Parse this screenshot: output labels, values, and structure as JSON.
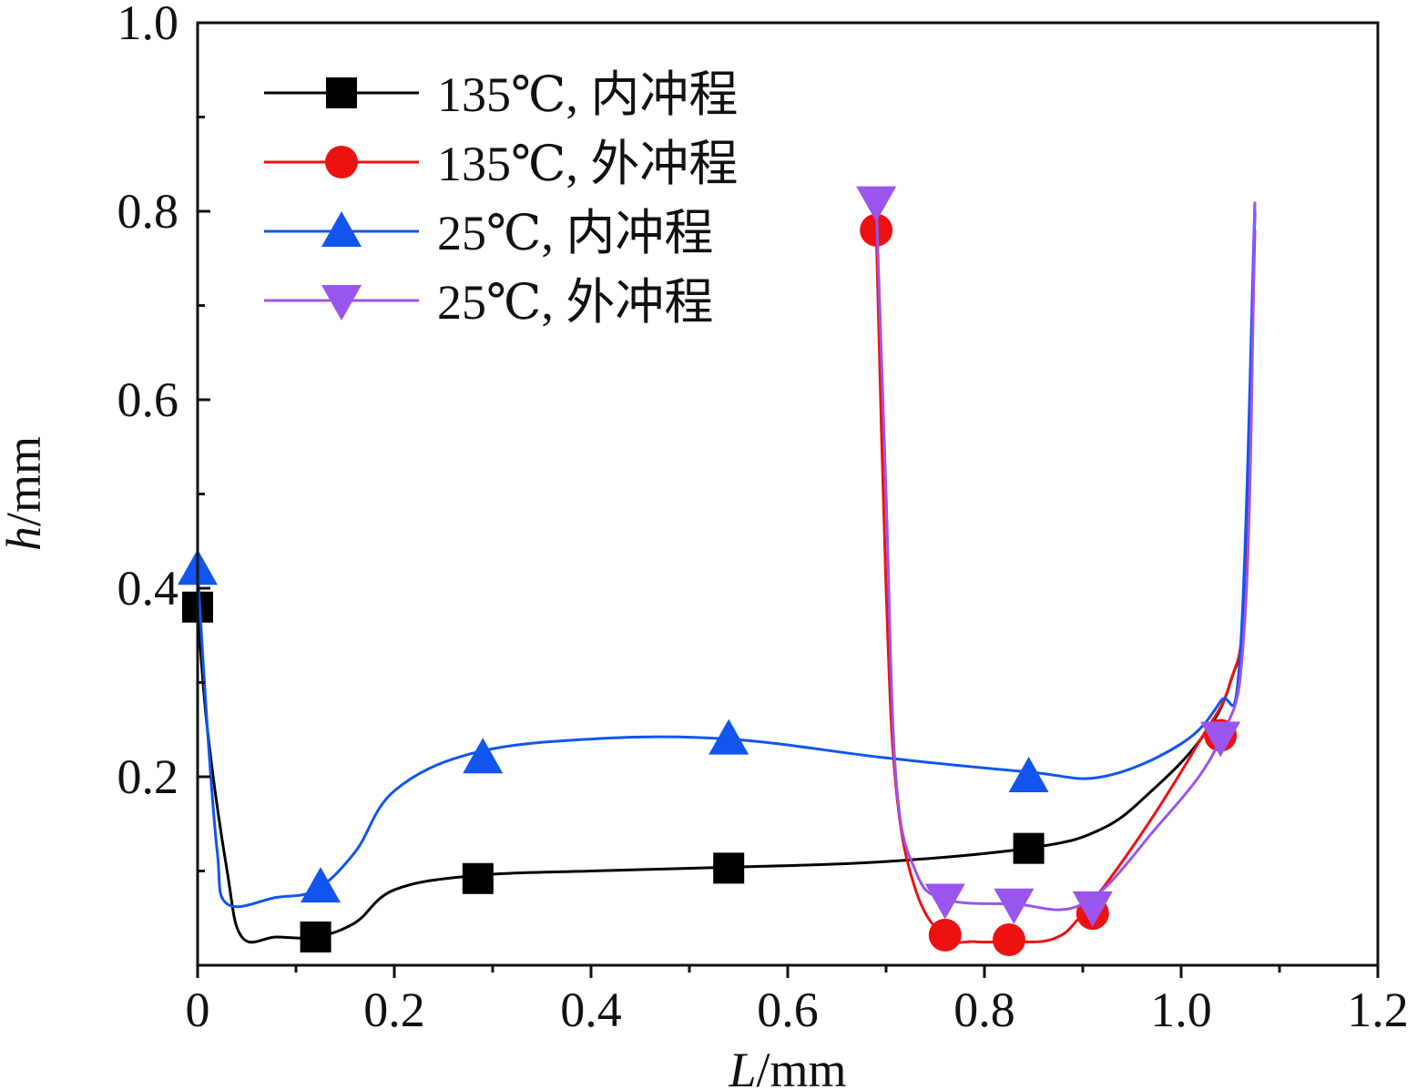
{
  "chart_data": {
    "type": "line",
    "title": "",
    "xlabel_italic": "L",
    "xlabel_unit": "/mm",
    "ylabel_italic": "h",
    "ylabel_unit": "/mm",
    "xlim": [
      0,
      1.2
    ],
    "ylim": [
      0,
      1.0
    ],
    "x_ticks": [
      {
        "value": 0,
        "label": "0"
      },
      {
        "value": 0.2,
        "label": "0.2"
      },
      {
        "value": 0.4,
        "label": "0.4"
      },
      {
        "value": 0.6,
        "label": "0.6"
      },
      {
        "value": 0.8,
        "label": "0.8"
      },
      {
        "value": 1.0,
        "label": "1.0"
      },
      {
        "value": 1.2,
        "label": "1.2"
      }
    ],
    "x_minor_ticks": [
      0.1,
      0.3,
      0.5,
      0.7,
      0.9,
      1.1
    ],
    "y_ticks": [
      {
        "value": 0.2,
        "label": "0.2"
      },
      {
        "value": 0.4,
        "label": "0.4"
      },
      {
        "value": 0.6,
        "label": "0.6"
      },
      {
        "value": 0.8,
        "label": "0.8"
      },
      {
        "value": 1.0,
        "label": "1.0"
      }
    ],
    "y_minor_ticks": [
      0.1,
      0.3,
      0.5,
      0.7,
      0.9
    ],
    "grid": false,
    "legend_position": "top-left",
    "series": [
      {
        "name": "135℃, 内冲程",
        "color": "#000000",
        "marker": "square",
        "curve": [
          [
            0.0,
            0.38
          ],
          [
            0.01,
            0.25
          ],
          [
            0.03,
            0.1
          ],
          [
            0.045,
            0.03
          ],
          [
            0.08,
            0.03
          ],
          [
            0.12,
            0.03
          ],
          [
            0.16,
            0.045
          ],
          [
            0.2,
            0.08
          ],
          [
            0.28,
            0.095
          ],
          [
            0.4,
            0.1
          ],
          [
            0.54,
            0.104
          ],
          [
            0.7,
            0.11
          ],
          [
            0.85,
            0.125
          ],
          [
            0.92,
            0.145
          ],
          [
            0.97,
            0.185
          ],
          [
            1.02,
            0.24
          ],
          [
            1.05,
            0.3
          ],
          [
            1.065,
            0.4
          ],
          [
            1.075,
            0.8
          ]
        ],
        "markers": [
          [
            0.0,
            0.38
          ],
          [
            0.12,
            0.03
          ],
          [
            0.285,
            0.092
          ],
          [
            0.54,
            0.103
          ],
          [
            0.845,
            0.124
          ]
        ]
      },
      {
        "name": "135℃, 外冲程",
        "color": "#ee1111",
        "marker": "circle",
        "curve": [
          [
            0.69,
            0.78
          ],
          [
            0.7,
            0.4
          ],
          [
            0.71,
            0.19
          ],
          [
            0.73,
            0.08
          ],
          [
            0.76,
            0.03
          ],
          [
            0.79,
            0.025
          ],
          [
            0.825,
            0.025
          ],
          [
            0.87,
            0.028
          ],
          [
            0.9,
            0.055
          ],
          [
            0.96,
            0.14
          ],
          [
            1.02,
            0.24
          ],
          [
            1.05,
            0.3
          ],
          [
            1.065,
            0.4
          ],
          [
            1.075,
            0.78
          ]
        ],
        "markers": [
          [
            0.69,
            0.78
          ],
          [
            0.76,
            0.032
          ],
          [
            0.825,
            0.027
          ],
          [
            0.91,
            0.055
          ],
          [
            1.04,
            0.244
          ]
        ]
      },
      {
        "name": "25℃, 内冲程",
        "color": "#1155ee",
        "marker": "triangle-up",
        "curve": [
          [
            0.0,
            0.42
          ],
          [
            0.01,
            0.25
          ],
          [
            0.02,
            0.12
          ],
          [
            0.03,
            0.065
          ],
          [
            0.08,
            0.072
          ],
          [
            0.12,
            0.08
          ],
          [
            0.16,
            0.12
          ],
          [
            0.2,
            0.185
          ],
          [
            0.28,
            0.225
          ],
          [
            0.4,
            0.24
          ],
          [
            0.54,
            0.24
          ],
          [
            0.7,
            0.22
          ],
          [
            0.845,
            0.205
          ],
          [
            0.92,
            0.2
          ],
          [
            1.0,
            0.235
          ],
          [
            1.04,
            0.28
          ],
          [
            1.06,
            0.33
          ],
          [
            1.075,
            0.81
          ]
        ],
        "markers": [
          [
            0.0,
            0.42
          ],
          [
            0.125,
            0.083
          ],
          [
            0.29,
            0.22
          ],
          [
            0.54,
            0.24
          ],
          [
            0.845,
            0.2
          ]
        ]
      },
      {
        "name": "25℃, 外冲程",
        "color": "#9955ee",
        "marker": "triangle-down",
        "curve": [
          [
            0.69,
            0.81
          ],
          [
            0.7,
            0.5
          ],
          [
            0.71,
            0.2
          ],
          [
            0.73,
            0.1
          ],
          [
            0.76,
            0.07
          ],
          [
            0.83,
            0.065
          ],
          [
            0.9,
            0.065
          ],
          [
            0.97,
            0.14
          ],
          [
            1.04,
            0.24
          ],
          [
            1.065,
            0.37
          ],
          [
            1.075,
            0.81
          ]
        ],
        "markers": [
          [
            0.69,
            0.81
          ],
          [
            0.76,
            0.07
          ],
          [
            0.83,
            0.065
          ],
          [
            0.91,
            0.062
          ],
          [
            1.04,
            0.242
          ]
        ]
      }
    ]
  }
}
